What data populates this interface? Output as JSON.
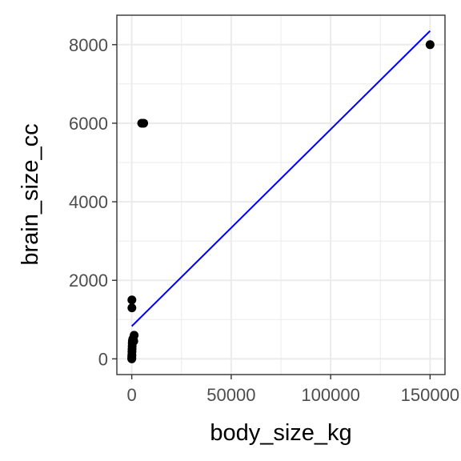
{
  "chart_data": {
    "type": "scatter",
    "title": "",
    "xlabel": "body_size_kg",
    "ylabel": "brain_size_cc",
    "xlim": [
      -7500,
      157500
    ],
    "ylim": [
      -400,
      8750
    ],
    "x_ticks": [
      0,
      50000,
      100000,
      150000
    ],
    "x_tick_labels": [
      "0",
      "50000",
      "100000",
      "150000"
    ],
    "y_ticks": [
      0,
      2000,
      4000,
      6000,
      8000
    ],
    "y_tick_labels": [
      "0",
      "2000",
      "4000",
      "6000",
      "8000"
    ],
    "grid": true,
    "points": [
      {
        "x": 0,
        "y": 0
      },
      {
        "x": 10,
        "y": 15
      },
      {
        "x": 30,
        "y": 60
      },
      {
        "x": 60,
        "y": 100
      },
      {
        "x": 100,
        "y": 180
      },
      {
        "x": 150,
        "y": 250
      },
      {
        "x": 200,
        "y": 320
      },
      {
        "x": 250,
        "y": 400
      },
      {
        "x": 300,
        "y": 450
      },
      {
        "x": 500,
        "y": 500
      },
      {
        "x": 700,
        "y": 520
      },
      {
        "x": 1000,
        "y": 450
      },
      {
        "x": 1200,
        "y": 600
      },
      {
        "x": 70,
        "y": 1300
      },
      {
        "x": 60,
        "y": 1500
      },
      {
        "x": 5000,
        "y": 6000
      },
      {
        "x": 6000,
        "y": 6000
      },
      {
        "x": 150000,
        "y": 8000
      }
    ],
    "fit_line": {
      "x": [
        0,
        150000
      ],
      "y": [
        830,
        8350
      ],
      "color": "#0000ff"
    },
    "point_color": "#000000"
  }
}
